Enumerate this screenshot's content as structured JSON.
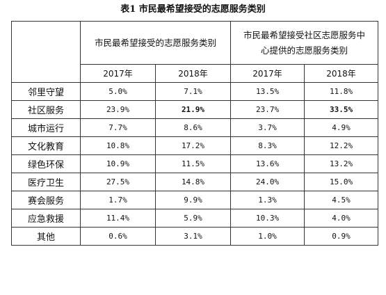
{
  "table": {
    "title": "表1  市民最希望接受的志愿服务类别",
    "group_headers": [
      "市民最希望接受的志愿服务类别",
      "市民最希望接受社区志愿服务中心提供的志愿服务类别"
    ],
    "group_header_lines": [
      [
        "市民最希望接受的志愿服务类别"
      ],
      [
        "市民最希望接受社区志愿服务中",
        "心提供的志愿服务类别"
      ]
    ],
    "years": [
      "2017年",
      "2018年",
      "2017年",
      "2018年"
    ],
    "rows": [
      {
        "label": "邻里守望",
        "values": [
          "5.0%",
          "7.1%",
          "13.5%",
          "11.8%"
        ],
        "bold": [
          false,
          false,
          false,
          false
        ]
      },
      {
        "label": "社区服务",
        "values": [
          "23.9%",
          "21.9%",
          "23.7%",
          "33.5%"
        ],
        "bold": [
          false,
          true,
          false,
          true
        ]
      },
      {
        "label": "城市运行",
        "values": [
          "7.7%",
          "8.6%",
          "3.7%",
          "4.9%"
        ],
        "bold": [
          false,
          false,
          false,
          false
        ]
      },
      {
        "label": "文化教育",
        "values": [
          "10.8%",
          "17.2%",
          "8.3%",
          "12.2%"
        ],
        "bold": [
          false,
          false,
          false,
          false
        ]
      },
      {
        "label": "绿色环保",
        "values": [
          "10.9%",
          "11.5%",
          "13.6%",
          "13.2%"
        ],
        "bold": [
          false,
          false,
          false,
          false
        ]
      },
      {
        "label": "医疗卫生",
        "values": [
          "27.5%",
          "14.8%",
          "24.0%",
          "15.0%"
        ],
        "bold": [
          false,
          false,
          false,
          false
        ]
      },
      {
        "label": "赛会服务",
        "values": [
          "1.7%",
          "9.9%",
          "1.3%",
          "4.5%"
        ],
        "bold": [
          false,
          false,
          false,
          false
        ]
      },
      {
        "label": "应急救援",
        "values": [
          "11.4%",
          "5.9%",
          "10.3%",
          "4.0%"
        ],
        "bold": [
          false,
          false,
          false,
          false
        ]
      },
      {
        "label": "其他",
        "values": [
          "0.6%",
          "3.1%",
          "1.0%",
          "0.9%"
        ],
        "bold": [
          false,
          false,
          false,
          false
        ]
      }
    ]
  }
}
